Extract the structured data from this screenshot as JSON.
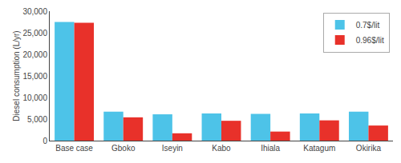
{
  "chart_data": {
    "type": "bar",
    "categories": [
      "Base case",
      "Gboko",
      "Iseyin",
      "Kabo",
      "Ihiala",
      "Katagum",
      "Okirika"
    ],
    "series": [
      {
        "name": "0.7$/lit",
        "color": "#4DC3E8",
        "values": [
          27500,
          6700,
          6100,
          6300,
          6200,
          6300,
          6700
        ]
      },
      {
        "name": "0.96$/lit",
        "color": "#E8312A",
        "values": [
          27300,
          5400,
          1700,
          4600,
          2100,
          4700,
          3500
        ]
      }
    ],
    "ylabel": "Diesel consumption (L/yr)",
    "ylim": [
      0,
      30000
    ],
    "yticks": [
      0,
      {
        "value": 5000,
        "label": "5,000"
      },
      {
        "value": 10000,
        "label": "10,000"
      },
      {
        "value": 15000,
        "label": "15,000"
      },
      {
        "value": 20000,
        "label": "20,000"
      },
      {
        "value": 25000,
        "label": "25,000"
      },
      {
        "value": 30000,
        "label": "30,000"
      }
    ],
    "legend": "upper right",
    "grid": false
  }
}
